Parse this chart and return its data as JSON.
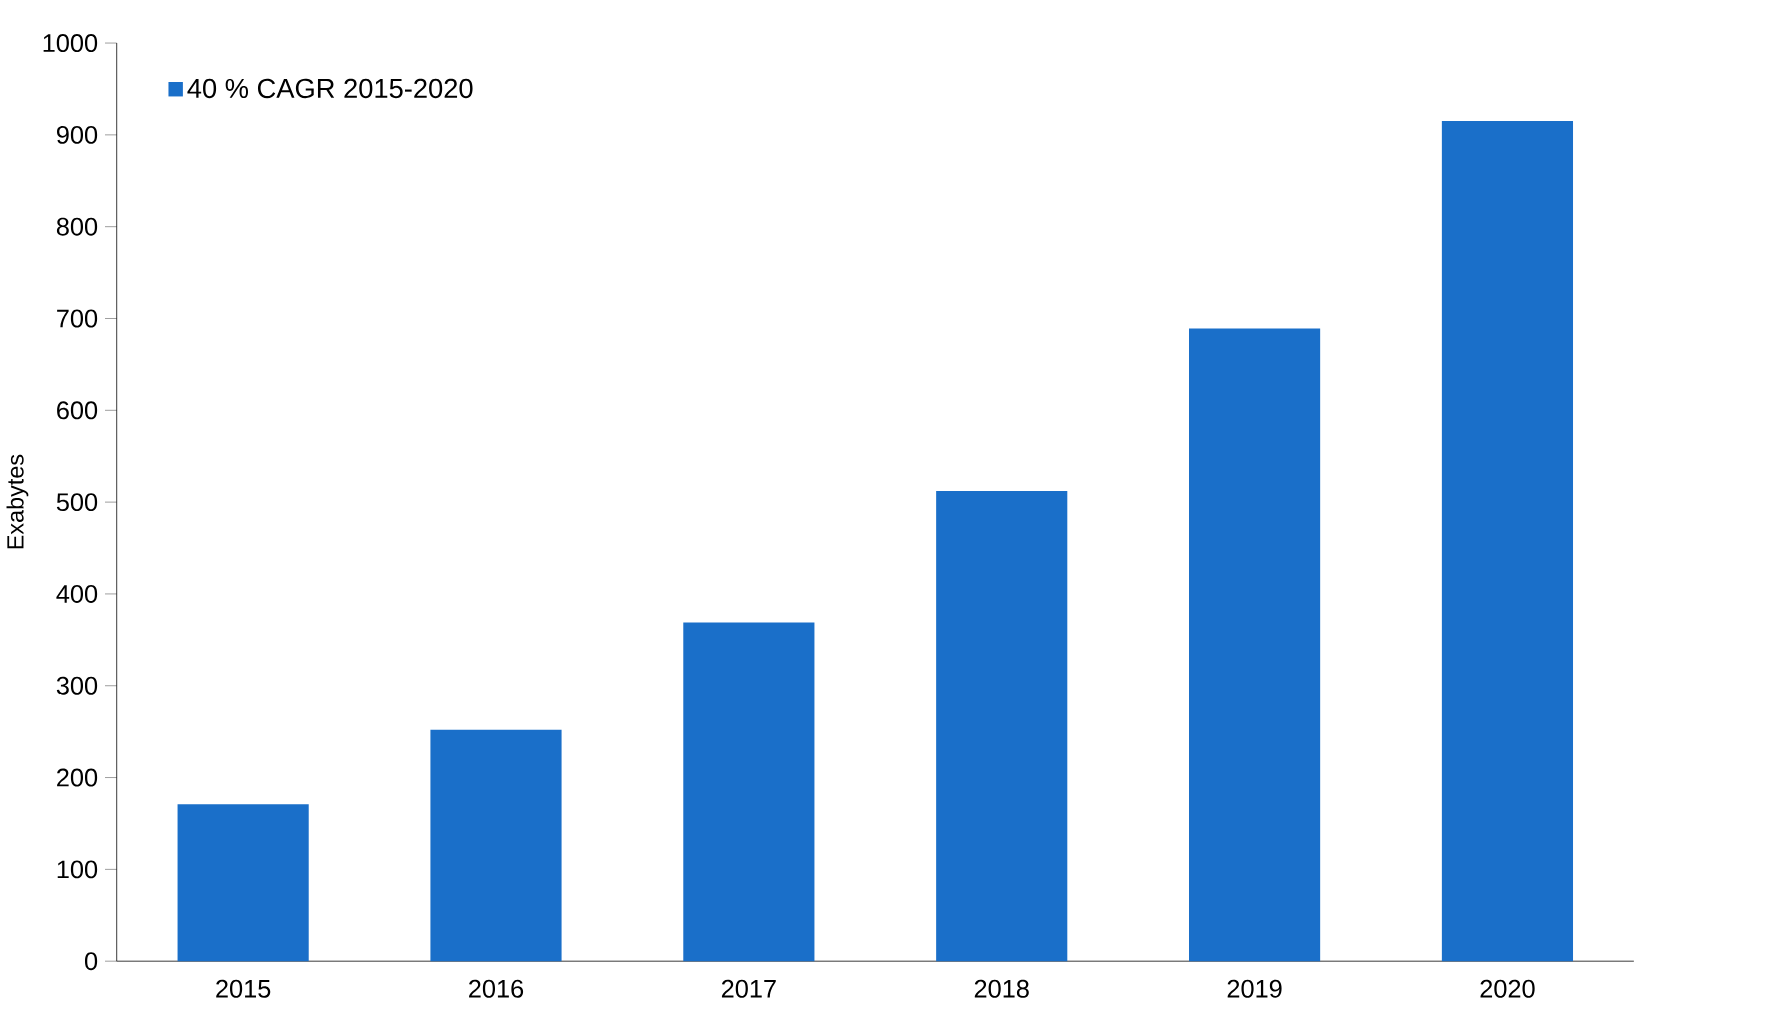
{
  "chart_data": {
    "type": "bar",
    "ylabel": "Exabytes",
    "categories": [
      "2015",
      "2016",
      "2017",
      "2018",
      "2019",
      "2020"
    ],
    "series": [
      {
        "name": "40 % CAGR 2015-2020",
        "color": "#1a6fc9",
        "values": [
          171,
          252,
          369,
          512,
          689,
          915
        ]
      }
    ],
    "ylim": [
      0,
      1000
    ],
    "yticks": [
      0,
      100,
      200,
      300,
      400,
      500,
      600,
      700,
      800,
      900,
      1000
    ],
    "legend": "top left",
    "grid": false
  }
}
